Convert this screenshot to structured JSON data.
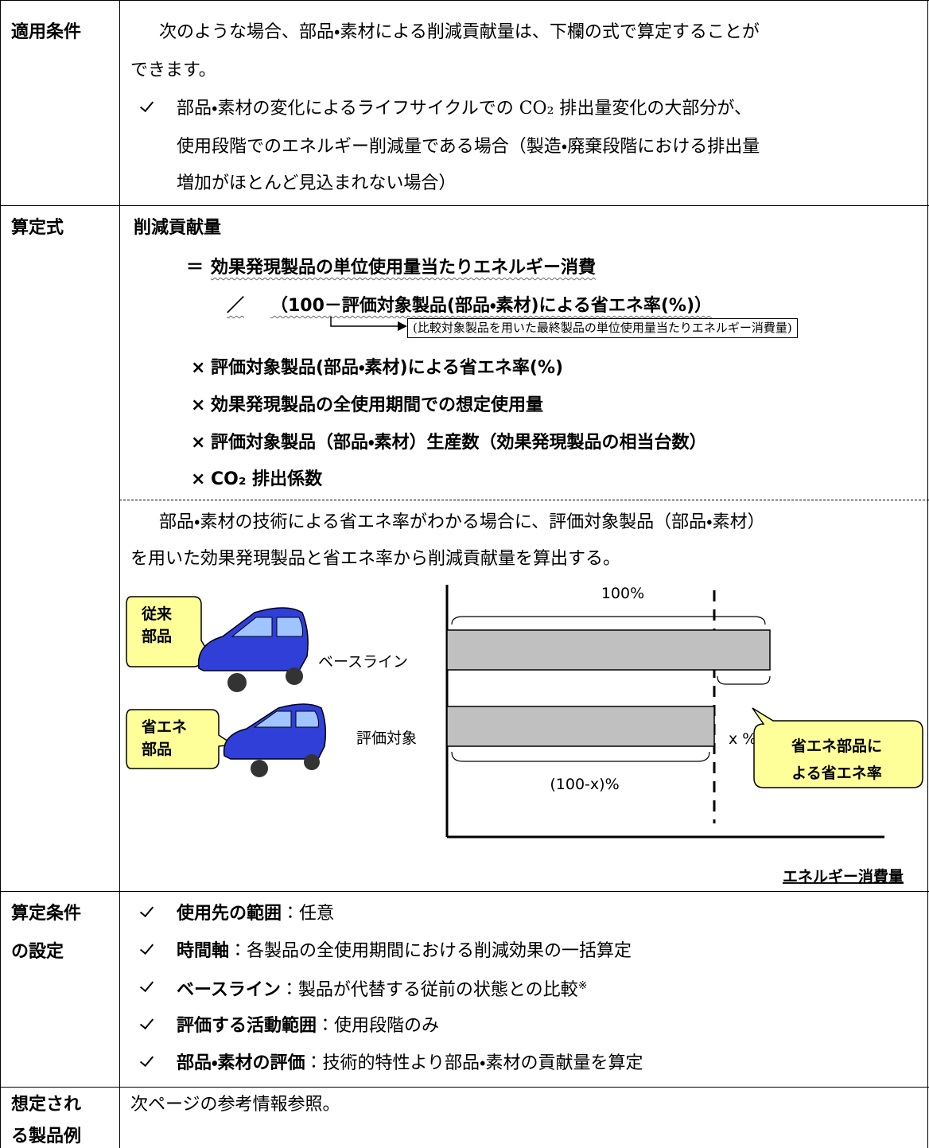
{
  "applicability": {
    "label": "適用条件",
    "intro": [
      "次のような場合、部品・素材による削減貢献量は、下欄の式で算定することが",
      "できます。"
    ],
    "bullet": [
      "部品・素材の変化によるライフサイクルでの CO₂ 排出量変化の大部分が、",
      "使用段階でのエネルギー削減量である場合（製造・廃棄段階における排出量",
      "増加がほとんど見込まれない場合）"
    ]
  },
  "formula": {
    "label": "算定式",
    "lhs": "削減貢献量",
    "lines": [
      {
        "op": "＝",
        "text": "効果発現製品の単位使用量当たりエネルギー消費"
      },
      {
        "op": "／",
        "text": "（100－評価対象製品(部品・素材)による省エネ率(%)）"
      },
      {
        "op": "×",
        "text": "評価対象製品(部品・素材)による省エネ率(%)"
      },
      {
        "op": "×",
        "text": "効果発現製品の全使用期間での想定使用量"
      },
      {
        "op": "×",
        "text": "評価対象製品（部品・素材）生産数（効果発現製品の相当台数）"
      },
      {
        "op": "×",
        "text": "CO₂ 排出係数"
      }
    ],
    "note": "(比較対象製品を用いた最終製品の単位使用量当たりエネルギー消費量)",
    "description": [
      "部品・素材の技術による省エネ率がわかる場合に、評価対象製品（部品・素材）",
      "を用いた効果発現製品と省エネ率から削減貢献量を算出する。"
    ]
  },
  "diagram": {
    "old_part": [
      "従来",
      "部品"
    ],
    "new_part": [
      "省エネ",
      "部品"
    ],
    "full": "100%",
    "baseline": "ベースライン",
    "target": "評価対象",
    "saving": "x %",
    "reduced": "(100-x)%",
    "callout": [
      "省エネ部品に",
      "よる省エネ率"
    ],
    "axis": "エネルギー消費量"
  },
  "conditions": {
    "label": [
      "算定条件",
      "の設定"
    ],
    "items": [
      {
        "term": "使用先の範囲",
        "desc": "：任意"
      },
      {
        "term": "時間軸",
        "desc": "：各製品の全使用期間における削減効果の一括算定"
      },
      {
        "term": "ベースライン",
        "desc": "：製品が代替する従前の状態との比較",
        "note": "※"
      },
      {
        "term": "評価する活動範囲",
        "desc": "：使用段階のみ"
      },
      {
        "term": "部品・素材の評価",
        "desc": "：技術的特性より部品・素材の貢献量を算定"
      }
    ]
  },
  "examples": {
    "label": [
      "想定され",
      "る製品例"
    ],
    "text": "次ページの参考情報参照。"
  }
}
